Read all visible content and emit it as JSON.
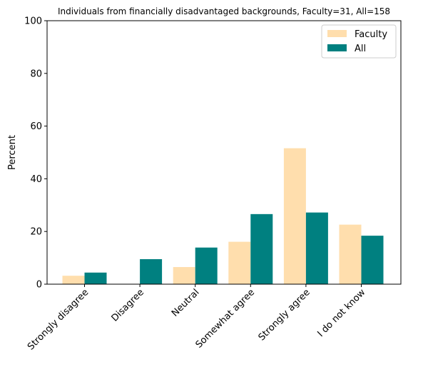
{
  "chart_data": {
    "type": "bar",
    "title": "Individuals from financially disadvantaged backgrounds, Faculty=31, All=158",
    "xlabel": "",
    "ylabel": "Percent",
    "ylim": [
      0,
      100
    ],
    "yticks": [
      0,
      20,
      40,
      60,
      80,
      100
    ],
    "categories": [
      "Strongly disagree",
      "Disagree",
      "Neutral",
      "Somewhat agree",
      "Strongly agree",
      "I do not know"
    ],
    "series": [
      {
        "name": "Faculty",
        "color": "#ffdead",
        "values": [
          3.2,
          0,
          6.5,
          16.1,
          51.6,
          22.6
        ]
      },
      {
        "name": "All",
        "color": "#008080",
        "values": [
          4.4,
          9.5,
          13.9,
          26.6,
          27.2,
          18.4
        ]
      }
    ],
    "legend_position": "top-right",
    "grid": false
  }
}
